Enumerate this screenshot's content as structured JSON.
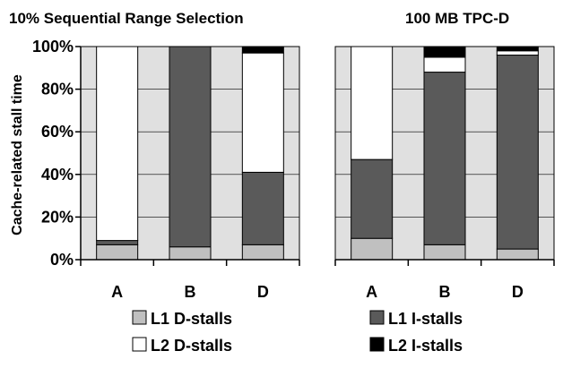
{
  "chart_data": [
    {
      "type": "bar",
      "stacked": true,
      "title": "10% Sequential Range Selection",
      "ylabel": "Cache-related stall time",
      "ylim": [
        0,
        100
      ],
      "yticks": [
        "0%",
        "20%",
        "40%",
        "60%",
        "80%",
        "100%"
      ],
      "categories": [
        "A",
        "B",
        "D"
      ],
      "series": [
        {
          "name": "L1 D-stalls",
          "values": [
            7,
            6,
            7
          ]
        },
        {
          "name": "L1 I-stalls",
          "values": [
            2,
            94,
            34
          ]
        },
        {
          "name": "L2 D-stalls",
          "values": [
            91,
            0,
            56
          ]
        },
        {
          "name": "L2 I-stalls",
          "values": [
            0,
            0,
            3
          ]
        }
      ],
      "grid": true
    },
    {
      "type": "bar",
      "stacked": true,
      "title": "100 MB TPC-D",
      "ylim": [
        0,
        100
      ],
      "categories": [
        "A",
        "B",
        "D"
      ],
      "series": [
        {
          "name": "L1 D-stalls",
          "values": [
            10,
            7,
            5
          ]
        },
        {
          "name": "L1 I-stalls",
          "values": [
            37,
            81,
            91
          ]
        },
        {
          "name": "L2 D-stalls",
          "values": [
            53,
            7,
            2
          ]
        },
        {
          "name": "L2 I-stalls",
          "values": [
            0,
            5,
            2
          ]
        }
      ],
      "grid": true
    }
  ],
  "legend": {
    "placement": "bottom",
    "items": [
      {
        "name": "L1 D-stalls",
        "color": "#c0c0c0"
      },
      {
        "name": "L1 I-stalls",
        "color": "#5a5a5a"
      },
      {
        "name": "L2 D-stalls",
        "color": "#ffffff"
      },
      {
        "name": "L2 I-stalls",
        "color": "#000000"
      }
    ]
  },
  "colors": {
    "plot_background": "#e0e0e0",
    "category_band": "#ffffff"
  }
}
